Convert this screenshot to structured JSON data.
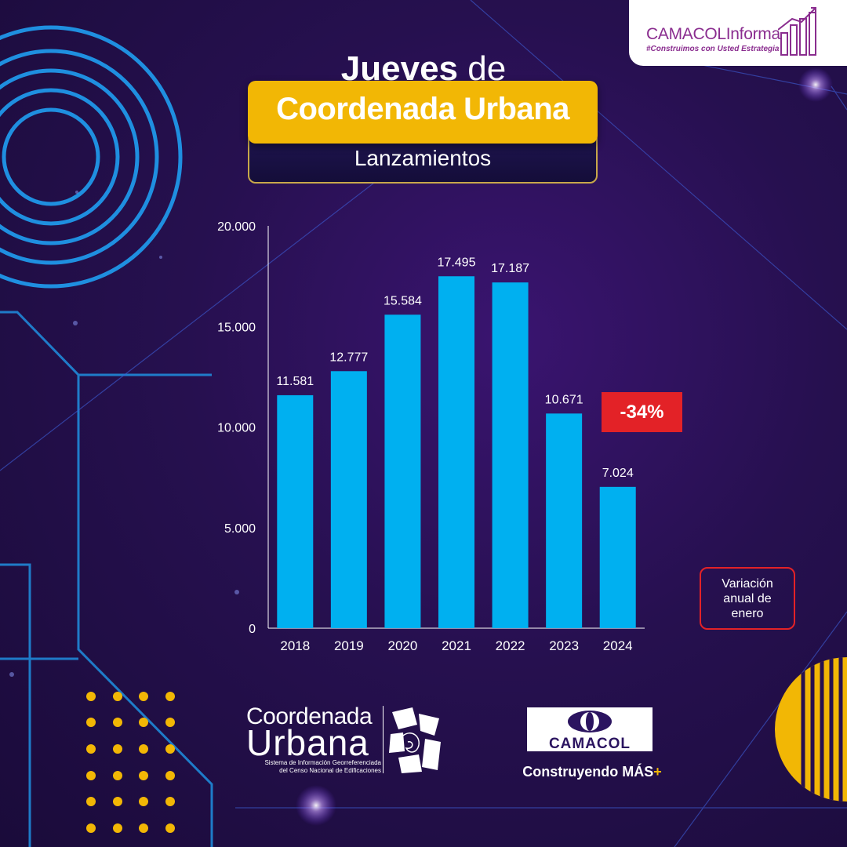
{
  "brand": {
    "name": "CAMACOLInforma",
    "tagline": "#Construimos con Usted Estrategia"
  },
  "header": {
    "line1_bold": "Jueves",
    "line1_rest": " de",
    "main_title": "Coordenada Urbana",
    "subtitle": "Lanzamientos"
  },
  "chart_data": {
    "type": "bar",
    "categories": [
      "2018",
      "2019",
      "2020",
      "2021",
      "2022",
      "2023",
      "2024"
    ],
    "values": [
      11581,
      12777,
      15584,
      17495,
      17187,
      10671,
      7024
    ],
    "data_labels": [
      "11.581",
      "12.777",
      "15.584",
      "17.495",
      "17.187",
      "10.671",
      "7.024"
    ],
    "ylim": [
      0,
      20000
    ],
    "yticks": [
      0,
      5000,
      10000,
      15000,
      20000
    ],
    "ytick_labels": [
      "0",
      "5.000",
      "10.000",
      "15.000",
      "20.000"
    ],
    "grid": false,
    "bar_color": "#00b0f0",
    "annotation": "-34%",
    "annotation_color": "#e32227",
    "note": "Variación anual de enero"
  },
  "logos": {
    "coordenada_line1": "Coordenada",
    "coordenada_line2": "Urbana",
    "coordenada_sub1": "Sistema de Información Georreferenciada",
    "coordenada_sub2": "del Censo Nacional de Edificaciones",
    "camacol_name": "CAMACOL",
    "camacol_tag": "Construyendo MÁS",
    "camacol_plus": "+"
  },
  "colors": {
    "accent_yellow": "#f2b705",
    "background": "#26104f",
    "line_blue": "#1f8fe0",
    "brand_purple": "#8a2d8f"
  }
}
